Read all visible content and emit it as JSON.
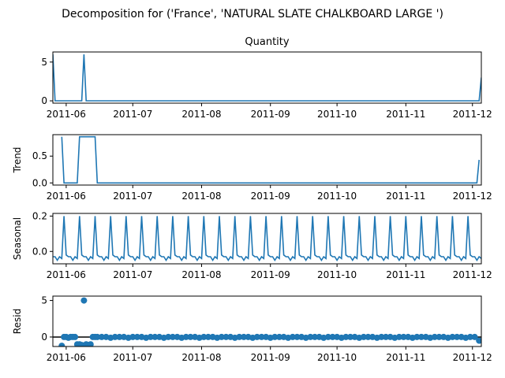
{
  "chart_data": {
    "type": "line",
    "title": "Decomposition for ('France', 'NATURAL SLATE CHALKBOARD LARGE ')",
    "x_tick_labels": [
      "2011-06",
      "2011-07",
      "2011-08",
      "2011-09",
      "2011-10",
      "2011-11",
      "2011-12"
    ],
    "x_tick_dates": [
      "2011-06-01",
      "2011-07-01",
      "2011-08-01",
      "2011-09-01",
      "2011-10-01",
      "2011-11-01",
      "2011-12-01"
    ],
    "x_range": [
      "2011-05-26",
      "2011-12-05"
    ],
    "line_color": "#1f77b4",
    "panels": [
      {
        "name": "observed",
        "title": "Quantity",
        "ylabel": "",
        "kind": "line",
        "ylim": [
          -0.3,
          6.3
        ],
        "yticks": [
          0,
          5
        ],
        "x": [
          "2011-05-26",
          "2011-05-27",
          "2011-06-02",
          "2011-06-08",
          "2011-06-09",
          "2011-06-10",
          "2011-12-04",
          "2011-12-05"
        ],
        "values": [
          6,
          0,
          0,
          0,
          6,
          0,
          0,
          3
        ]
      },
      {
        "name": "trend",
        "title": "",
        "ylabel": "Trend",
        "kind": "line",
        "ylim": [
          -0.04,
          0.9
        ],
        "yticks": [
          0.0,
          0.5
        ],
        "x": [
          "2011-05-30",
          "2011-05-31",
          "2011-06-06",
          "2011-06-07",
          "2011-06-14",
          "2011-06-15",
          "2011-12-03",
          "2011-12-04"
        ],
        "values": [
          0.86,
          0,
          0,
          0.86,
          0.86,
          0,
          0,
          0.43
        ]
      },
      {
        "name": "seasonal",
        "title": "",
        "ylabel": "Seasonal",
        "kind": "seasonal",
        "ylim": [
          -0.07,
          0.215
        ],
        "yticks": [
          0.0,
          0.2
        ],
        "period_days": 7,
        "first_peak": "2011-05-31",
        "pattern": [
          0.2,
          -0.02,
          -0.03,
          -0.03,
          -0.05,
          -0.03,
          -0.04
        ]
      },
      {
        "name": "resid",
        "title": "",
        "ylabel": "Resid",
        "kind": "scatter",
        "ylim": [
          -1.3,
          5.6
        ],
        "yticks": [
          0,
          5
        ],
        "zero_line": true,
        "x": [
          "2011-05-30",
          "2011-05-31",
          "2011-06-01",
          "2011-06-02",
          "2011-06-03",
          "2011-06-04",
          "2011-06-05",
          "2011-06-06",
          "2011-06-07",
          "2011-06-08",
          "2011-06-09",
          "2011-06-10",
          "2011-06-11",
          "2011-06-12",
          "2011-06-13",
          "2011-06-14",
          "2011-06-15",
          "2011-06-17",
          "2011-06-19",
          "2011-06-21",
          "2011-06-23",
          "2011-06-25",
          "2011-06-27",
          "2011-06-29",
          "2011-07-01",
          "2011-07-03",
          "2011-07-05",
          "2011-07-07",
          "2011-07-09",
          "2011-07-11",
          "2011-07-13",
          "2011-07-15",
          "2011-07-17",
          "2011-07-19",
          "2011-07-21",
          "2011-07-23",
          "2011-07-25",
          "2011-07-27",
          "2011-07-29",
          "2011-07-31",
          "2011-08-02",
          "2011-08-04",
          "2011-08-06",
          "2011-08-08",
          "2011-08-10",
          "2011-08-12",
          "2011-08-14",
          "2011-08-16",
          "2011-08-18",
          "2011-08-20",
          "2011-08-22",
          "2011-08-24",
          "2011-08-26",
          "2011-08-28",
          "2011-08-30",
          "2011-09-01",
          "2011-09-03",
          "2011-09-05",
          "2011-09-07",
          "2011-09-09",
          "2011-09-11",
          "2011-09-13",
          "2011-09-15",
          "2011-09-17",
          "2011-09-19",
          "2011-09-21",
          "2011-09-23",
          "2011-09-25",
          "2011-09-27",
          "2011-09-29",
          "2011-10-01",
          "2011-10-03",
          "2011-10-05",
          "2011-10-07",
          "2011-10-09",
          "2011-10-11",
          "2011-10-13",
          "2011-10-15",
          "2011-10-17",
          "2011-10-19",
          "2011-10-21",
          "2011-10-23",
          "2011-10-25",
          "2011-10-27",
          "2011-10-29",
          "2011-10-31",
          "2011-11-02",
          "2011-11-04",
          "2011-11-06",
          "2011-11-08",
          "2011-11-10",
          "2011-11-12",
          "2011-11-14",
          "2011-11-16",
          "2011-11-18",
          "2011-11-20",
          "2011-11-22",
          "2011-11-24",
          "2011-11-26",
          "2011-11-28",
          "2011-11-30",
          "2011-12-02",
          "2011-12-04"
        ],
        "values": [
          -1.2,
          0.0,
          0.0,
          -0.1,
          0.0,
          0.0,
          0.0,
          -1.0,
          -1.0,
          -1.1,
          5.0,
          -1.0,
          -1.1,
          -1.0,
          0.0,
          0.0,
          0.0,
          0.0,
          0.0,
          -0.1,
          0.0,
          0.0,
          0.0,
          -0.1,
          0.0,
          0.0,
          0.0,
          -0.1,
          0.0,
          0.0,
          0.0,
          -0.1,
          0.0,
          0.0,
          0.0,
          -0.1,
          0.0,
          0.0,
          0.0,
          -0.1,
          0.0,
          0.0,
          0.0,
          -0.1,
          0.0,
          0.0,
          0.0,
          -0.1,
          0.0,
          0.0,
          0.0,
          -0.1,
          0.0,
          0.0,
          0.0,
          -0.1,
          0.0,
          0.0,
          0.0,
          -0.1,
          0.0,
          0.0,
          0.0,
          -0.1,
          0.0,
          0.0,
          0.0,
          -0.1,
          0.0,
          0.0,
          0.0,
          -0.1,
          0.0,
          0.0,
          0.0,
          -0.1,
          0.0,
          0.0,
          0.0,
          -0.1,
          0.0,
          0.0,
          0.0,
          -0.1,
          0.0,
          0.0,
          0.0,
          -0.1,
          0.0,
          0.0,
          0.0,
          -0.1,
          0.0,
          0.0,
          0.0,
          -0.1,
          0.0,
          0.0,
          0.0,
          -0.1,
          0.0,
          0.0,
          -0.5
        ]
      }
    ]
  }
}
